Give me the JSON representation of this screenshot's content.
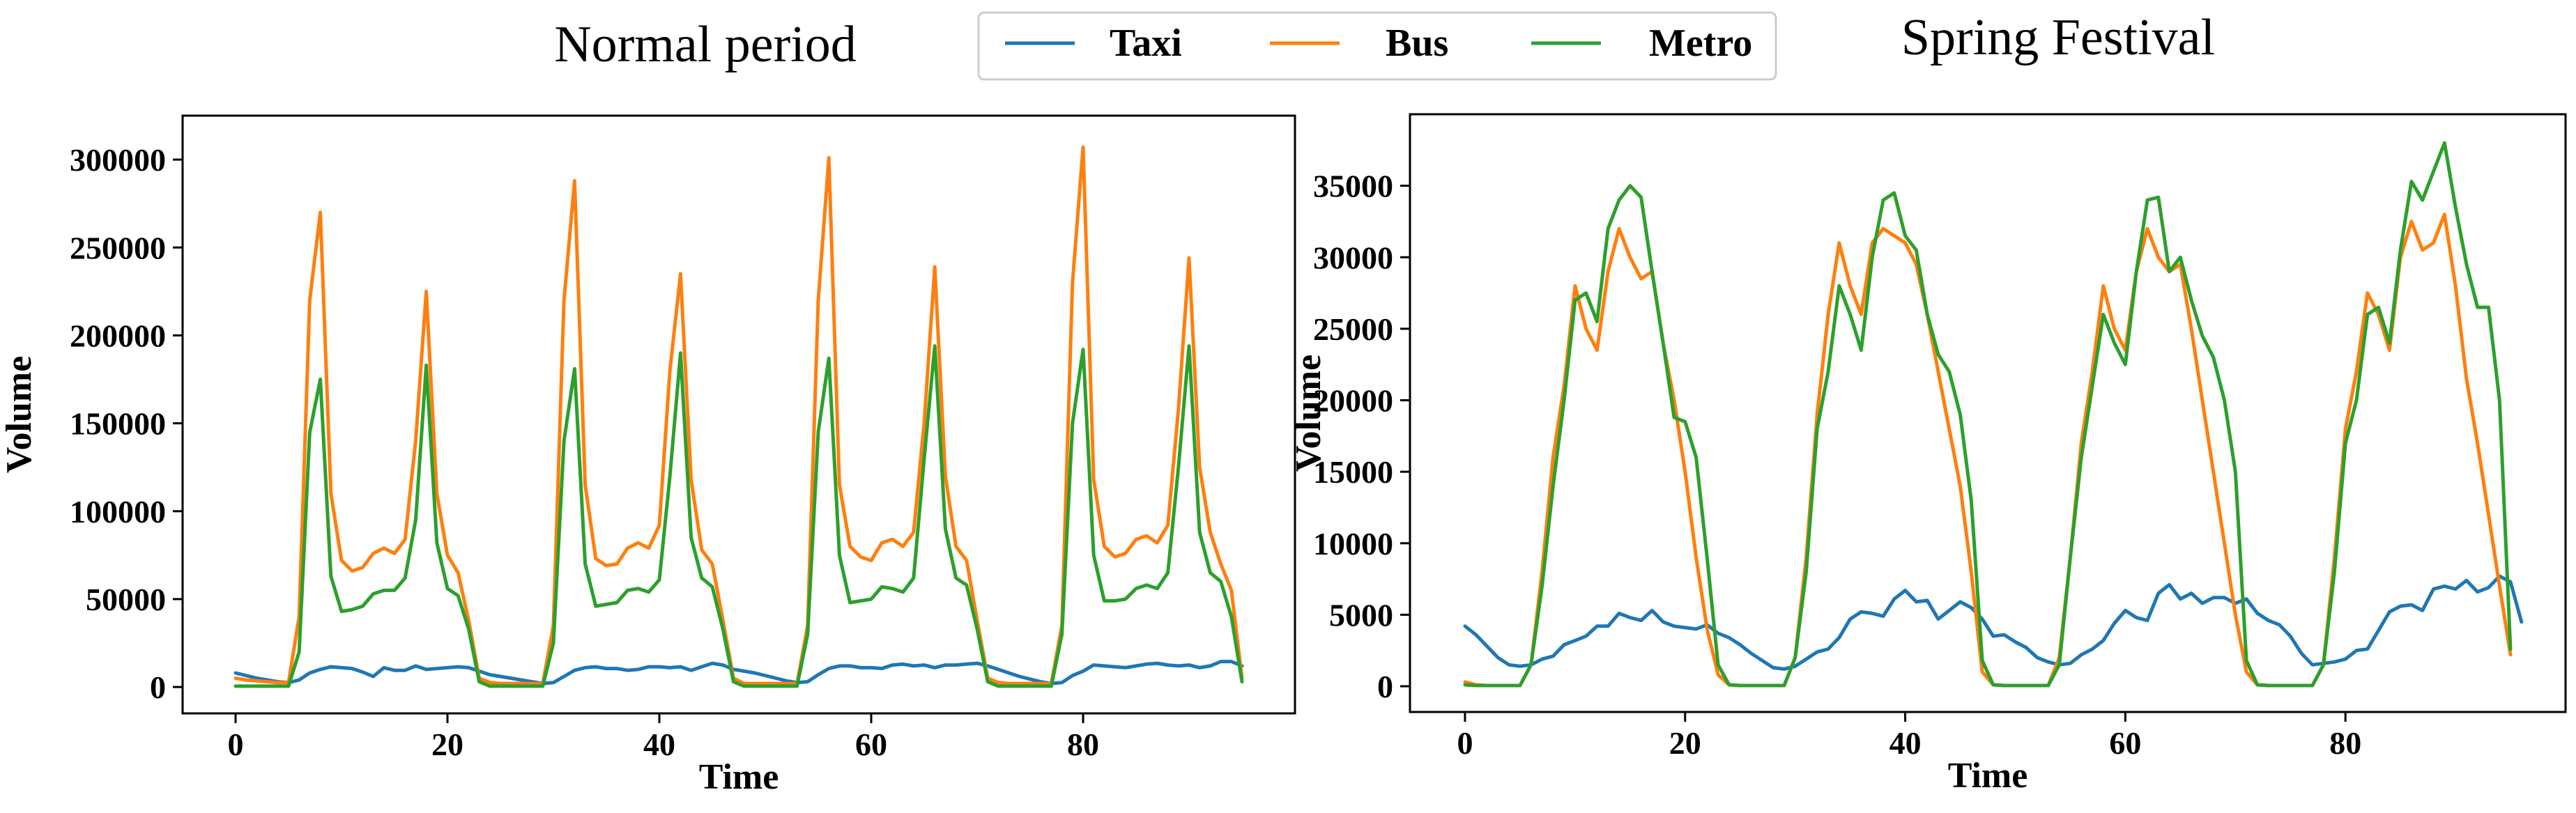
{
  "figure": {
    "legend": [
      {
        "name": "Taxi",
        "color": "#1f77b4"
      },
      {
        "name": "Bus",
        "color": "#ff7f0e"
      },
      {
        "name": "Metro",
        "color": "#2ca02c"
      }
    ]
  },
  "chart_data": [
    {
      "type": "line",
      "title": "Normal period",
      "xlabel": "Time",
      "ylabel": "Volume",
      "xlim": [
        -5,
        100
      ],
      "ylim": [
        -15000,
        325000
      ],
      "xticks": [
        0,
        20,
        40,
        60,
        80
      ],
      "yticks": [
        0,
        50000,
        100000,
        150000,
        200000,
        250000,
        300000
      ],
      "x_start": 0,
      "series": [
        {
          "name": "Taxi",
          "color": "#1f77b4",
          "values": [
            8000,
            6500,
            5000,
            4000,
            3000,
            2500,
            4000,
            8000,
            10000,
            11500,
            11000,
            10500,
            8500,
            6000,
            11000,
            9500,
            9500,
            12000,
            10000,
            10500,
            11000,
            11500,
            11000,
            9000,
            7000,
            6000,
            5000,
            4000,
            3000,
            2000,
            2500,
            6000,
            9500,
            11000,
            11500,
            10500,
            10500,
            9500,
            10000,
            11500,
            11500,
            11000,
            11500,
            9500,
            11500,
            13500,
            12500,
            10000,
            9000,
            8000,
            6500,
            5000,
            3500,
            2500,
            3000,
            7000,
            10500,
            12000,
            12000,
            11000,
            11000,
            10500,
            12500,
            13000,
            12000,
            12500,
            11000,
            12500,
            12500,
            13000,
            13500,
            12000,
            10000,
            8000,
            6000,
            4500,
            3000,
            2000,
            2500,
            6500,
            9000,
            12500,
            12000,
            11500,
            11000,
            12000,
            13000,
            13500,
            12500,
            12000,
            12500,
            11000,
            12000,
            14500,
            14500,
            12000
          ]
        },
        {
          "name": "Bus",
          "color": "#ff7f0e",
          "values": [
            5000,
            4000,
            3500,
            3000,
            2500,
            2500,
            40000,
            220000,
            270000,
            110000,
            72000,
            66000,
            68000,
            76000,
            79000,
            76000,
            84000,
            140000,
            225000,
            110000,
            75000,
            65000,
            38000,
            5000,
            2500,
            2000,
            2000,
            2000,
            2000,
            2000,
            35000,
            220000,
            288000,
            115000,
            73000,
            69000,
            70000,
            79000,
            82000,
            79000,
            92000,
            180000,
            235000,
            118000,
            78000,
            70000,
            38000,
            5000,
            2000,
            2000,
            2000,
            2000,
            2000,
            2000,
            35000,
            220000,
            301000,
            115000,
            80000,
            74000,
            72000,
            82000,
            84000,
            80000,
            88000,
            150000,
            239000,
            120000,
            80000,
            72000,
            38000,
            5000,
            2500,
            2000,
            2000,
            2000,
            2000,
            2000,
            35000,
            230000,
            307000,
            118000,
            80000,
            74000,
            76000,
            84000,
            86000,
            82000,
            92000,
            158000,
            244000,
            125000,
            88000,
            70000,
            55000,
            5000
          ]
        },
        {
          "name": "Metro",
          "color": "#2ca02c",
          "values": [
            500,
            500,
            500,
            500,
            500,
            500,
            20000,
            145000,
            175000,
            63000,
            43000,
            44000,
            46000,
            53000,
            55000,
            55000,
            62000,
            95000,
            183000,
            82000,
            56000,
            52000,
            33000,
            3000,
            500,
            500,
            500,
            500,
            500,
            500,
            25000,
            140000,
            181000,
            70000,
            46000,
            47000,
            48000,
            55000,
            56000,
            54000,
            61000,
            120000,
            190000,
            85000,
            62000,
            57000,
            33000,
            3000,
            500,
            500,
            500,
            500,
            500,
            500,
            30000,
            145000,
            187000,
            75000,
            48000,
            49000,
            50000,
            57000,
            56000,
            54000,
            62000,
            130000,
            194000,
            90000,
            62000,
            58000,
            33000,
            3000,
            500,
            500,
            500,
            500,
            500,
            500,
            30000,
            150000,
            192000,
            75000,
            49000,
            49000,
            50000,
            56000,
            58000,
            56000,
            65000,
            125000,
            194000,
            88000,
            65000,
            60000,
            40000,
            3000
          ]
        }
      ]
    },
    {
      "type": "line",
      "title": "Spring Festival",
      "xlabel": "Time",
      "ylabel": "Volume",
      "xlim": [
        -5,
        100
      ],
      "ylim": [
        -1800,
        40000
      ],
      "xticks": [
        0,
        20,
        40,
        60,
        80
      ],
      "yticks": [
        0,
        5000,
        10000,
        15000,
        20000,
        25000,
        30000,
        35000
      ],
      "x_start": 0,
      "series": [
        {
          "name": "Taxi",
          "color": "#1f77b4",
          "values": [
            4200,
            3600,
            2800,
            2000,
            1500,
            1400,
            1500,
            1900,
            2100,
            2900,
            3200,
            3500,
            4200,
            4200,
            5100,
            4800,
            4600,
            5300,
            4500,
            4200,
            4100,
            4000,
            4300,
            3700,
            3400,
            2900,
            2300,
            1800,
            1300,
            1200,
            1400,
            1900,
            2400,
            2600,
            3400,
            4700,
            5200,
            5100,
            4900,
            6100,
            6700,
            5900,
            6000,
            4700,
            5300,
            5900,
            5500,
            4700,
            3500,
            3600,
            3100,
            2700,
            2000,
            1700,
            1500,
            1600,
            2200,
            2600,
            3200,
            4400,
            5300,
            4800,
            4600,
            6500,
            7100,
            6100,
            6500,
            5800,
            6200,
            6200,
            5800,
            6100,
            5100,
            4600,
            4300,
            3500,
            2300,
            1500,
            1600,
            1700,
            1900,
            2500,
            2600,
            3900,
            5200,
            5600,
            5700,
            5300,
            6800,
            7000,
            6800,
            7400,
            6600,
            6900,
            7700,
            7300,
            4500
          ]
        },
        {
          "name": "Bus",
          "color": "#ff7f0e",
          "values": [
            300,
            100,
            50,
            50,
            50,
            50,
            1500,
            8000,
            16000,
            21000,
            28000,
            25000,
            23500,
            29000,
            32000,
            30000,
            28500,
            29000,
            24000,
            20000,
            15000,
            9000,
            4000,
            800,
            100,
            50,
            50,
            50,
            50,
            50,
            2000,
            9000,
            19000,
            26000,
            31000,
            28000,
            26000,
            31000,
            32000,
            31500,
            31000,
            29500,
            26000,
            22000,
            18000,
            14000,
            8000,
            1000,
            100,
            50,
            50,
            50,
            50,
            50,
            2000,
            9000,
            17000,
            22000,
            28000,
            25000,
            23500,
            29000,
            32000,
            30000,
            29000,
            29500,
            25000,
            20000,
            15000,
            10000,
            5000,
            1000,
            100,
            50,
            50,
            50,
            50,
            50,
            1500,
            9000,
            18000,
            22000,
            27500,
            26000,
            23500,
            30000,
            32500,
            30500,
            31000,
            33000,
            28000,
            21500,
            17000,
            12000,
            7000,
            2200
          ]
        },
        {
          "name": "Metro",
          "color": "#2ca02c",
          "values": [
            100,
            50,
            50,
            50,
            50,
            50,
            1500,
            7000,
            14000,
            20000,
            27000,
            27500,
            25500,
            32000,
            34000,
            35000,
            34200,
            29000,
            24000,
            18800,
            18500,
            16000,
            9000,
            1500,
            100,
            50,
            50,
            50,
            50,
            50,
            2000,
            8000,
            18000,
            22000,
            28000,
            26000,
            23500,
            30000,
            34000,
            34500,
            31500,
            30500,
            26000,
            23200,
            22000,
            19000,
            13000,
            1800,
            100,
            50,
            50,
            50,
            50,
            50,
            1500,
            9000,
            16000,
            21000,
            26000,
            24000,
            22500,
            29000,
            34000,
            34200,
            29000,
            30000,
            27000,
            24500,
            23000,
            20000,
            15000,
            1800,
            100,
            50,
            50,
            50,
            50,
            50,
            1500,
            8000,
            17000,
            20000,
            26000,
            26500,
            24000,
            30500,
            35300,
            34000,
            36000,
            38000,
            33500,
            29500,
            26500,
            26500,
            20000,
            2600
          ]
        }
      ]
    }
  ]
}
